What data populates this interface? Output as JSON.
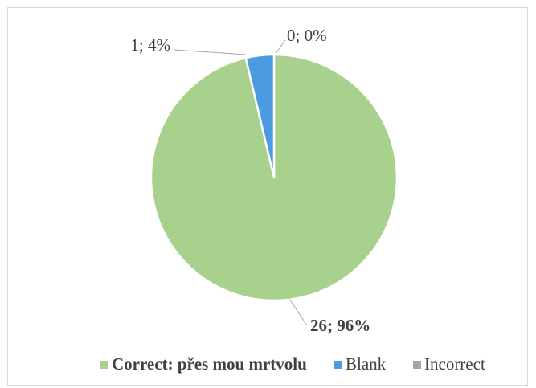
{
  "chart_data": {
    "type": "pie",
    "categories": [
      "Correct: přes mou mrtvolu",
      "Blank",
      "Incorrect"
    ],
    "values": [
      26,
      1,
      0
    ],
    "value_labels": [
      "26; 96%",
      "1; 4%",
      "0; 0%"
    ],
    "colors": [
      "#a9d18e",
      "#4a9be0",
      "#a5a5a5"
    ],
    "legend": "bottom"
  }
}
